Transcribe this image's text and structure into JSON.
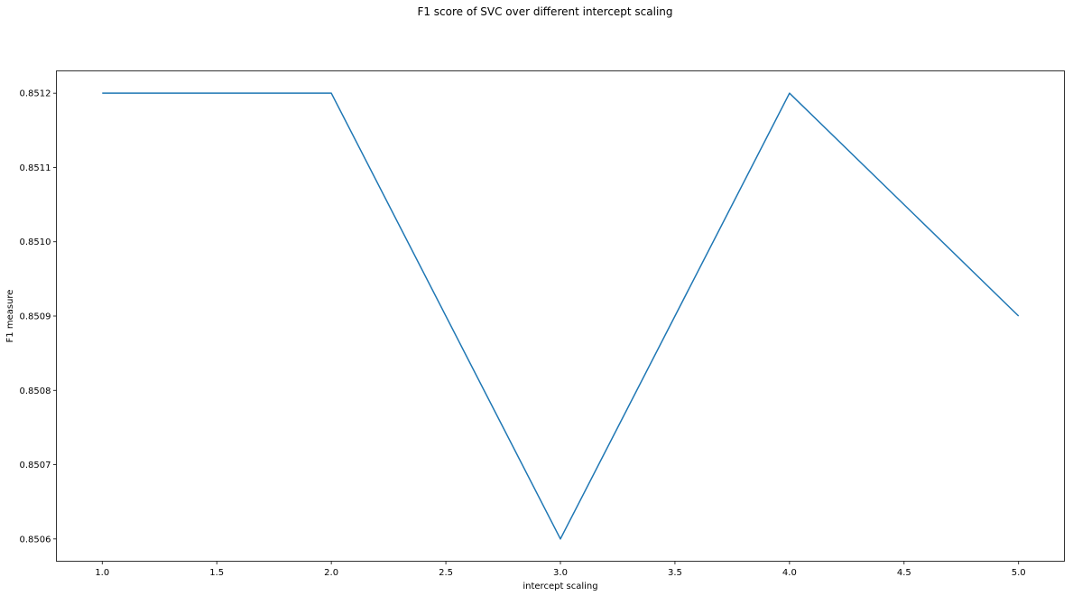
{
  "chart_data": {
    "type": "line",
    "title": "F1 score of SVC over different intercept scaling",
    "xlabel": "intercept scaling",
    "ylabel": "F1 measure",
    "x": [
      1.0,
      2.0,
      3.0,
      4.0,
      5.0
    ],
    "series": [
      {
        "values": [
          0.8512,
          0.8512,
          0.8506,
          0.8512,
          0.8509
        ],
        "color": "#1f77b4"
      }
    ],
    "xlim": [
      0.8,
      5.2
    ],
    "ylim": [
      0.85057,
      0.85123
    ],
    "xticks": [
      1.0,
      1.5,
      2.0,
      2.5,
      3.0,
      3.5,
      4.0,
      4.5,
      5.0
    ],
    "xtick_labels": [
      "1.0",
      "1.5",
      "2.0",
      "2.5",
      "3.0",
      "3.5",
      "4.0",
      "4.5",
      "5.0"
    ],
    "yticks": [
      0.8506,
      0.8507,
      0.8508,
      0.8509,
      0.851,
      0.8511,
      0.8512
    ],
    "ytick_labels": [
      "0.8506",
      "0.8507",
      "0.8508",
      "0.8509",
      "0.8510",
      "0.8511",
      "0.8512"
    ],
    "grid": false,
    "legend": "none"
  }
}
